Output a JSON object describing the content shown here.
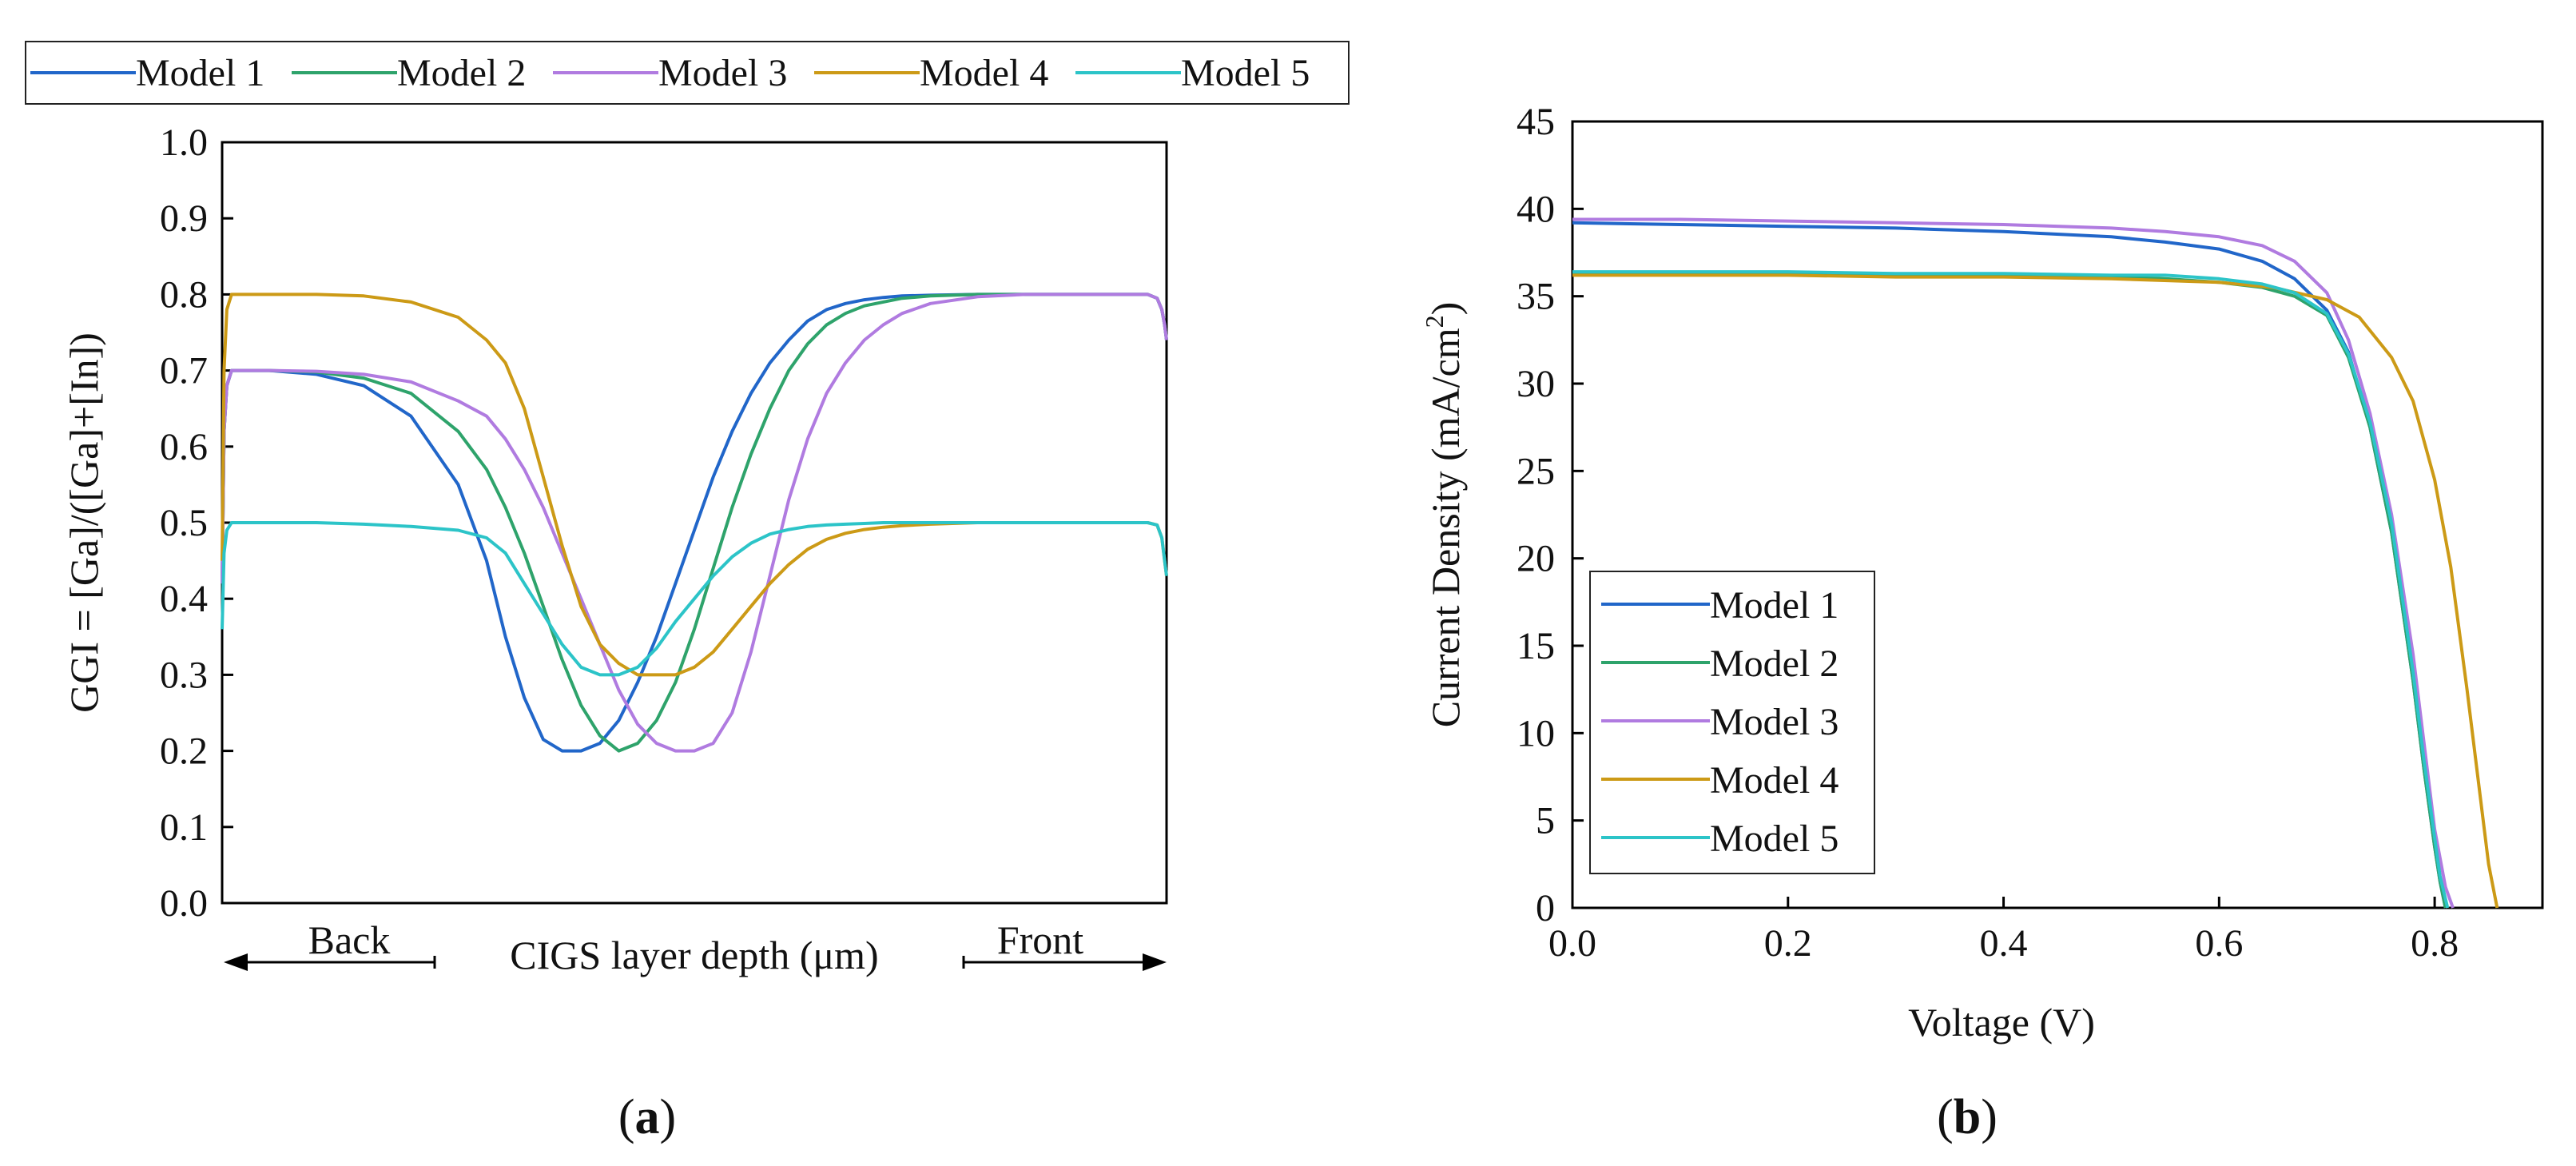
{
  "chart_data": [
    {
      "type": "line",
      "panel_label": "a",
      "title": "",
      "xlabel": "CIGS layer depth (μm)",
      "ylabel": "GGI = [Ga]/([Ga]+[In])",
      "direction_labels": {
        "left": "Back",
        "right": "Front"
      },
      "xlim": [
        0,
        1
      ],
      "ylim": [
        0,
        1
      ],
      "yticks": [
        0.0,
        0.1,
        0.2,
        0.3,
        0.4,
        0.5,
        0.6,
        0.7,
        0.8,
        0.9,
        1.0
      ],
      "ytick_labels": [
        "0.0",
        "0.1",
        "0.2",
        "0.3",
        "0.4",
        "0.5",
        "0.6",
        "0.7",
        "0.8",
        "0.9",
        "1.0"
      ],
      "grid": false,
      "legend_position": "top",
      "x": [
        0,
        0.002,
        0.005,
        0.01,
        0.02,
        0.05,
        0.1,
        0.15,
        0.2,
        0.25,
        0.28,
        0.3,
        0.32,
        0.34,
        0.36,
        0.38,
        0.4,
        0.42,
        0.44,
        0.46,
        0.48,
        0.5,
        0.52,
        0.54,
        0.56,
        0.58,
        0.6,
        0.62,
        0.64,
        0.66,
        0.68,
        0.7,
        0.72,
        0.75,
        0.8,
        0.85,
        0.9,
        0.95,
        0.98,
        0.99,
        0.995,
        0.998,
        1.0
      ],
      "series": [
        {
          "name": "Model 1",
          "color": "#2166c9",
          "values": [
            0.42,
            0.62,
            0.68,
            0.7,
            0.7,
            0.7,
            0.695,
            0.68,
            0.64,
            0.55,
            0.45,
            0.35,
            0.27,
            0.215,
            0.2,
            0.2,
            0.21,
            0.24,
            0.29,
            0.35,
            0.42,
            0.49,
            0.56,
            0.62,
            0.67,
            0.71,
            0.74,
            0.765,
            0.78,
            0.788,
            0.793,
            0.796,
            0.798,
            0.799,
            0.8,
            0.8,
            0.8,
            0.8,
            0.8,
            0.795,
            0.78,
            0.76,
            0.74
          ]
        },
        {
          "name": "Model 2",
          "color": "#2ea36b",
          "values": [
            0.42,
            0.62,
            0.68,
            0.7,
            0.7,
            0.7,
            0.698,
            0.69,
            0.67,
            0.62,
            0.57,
            0.52,
            0.46,
            0.39,
            0.32,
            0.26,
            0.22,
            0.2,
            0.21,
            0.24,
            0.29,
            0.36,
            0.44,
            0.52,
            0.59,
            0.65,
            0.7,
            0.735,
            0.76,
            0.775,
            0.785,
            0.79,
            0.795,
            0.798,
            0.8,
            0.8,
            0.8,
            0.8,
            0.8,
            0.795,
            0.78,
            0.76,
            0.74
          ]
        },
        {
          "name": "Model 3",
          "color": "#b07be0",
          "values": [
            0.42,
            0.62,
            0.68,
            0.7,
            0.7,
            0.7,
            0.699,
            0.695,
            0.685,
            0.66,
            0.64,
            0.61,
            0.57,
            0.52,
            0.46,
            0.4,
            0.34,
            0.28,
            0.235,
            0.21,
            0.2,
            0.2,
            0.21,
            0.25,
            0.33,
            0.43,
            0.53,
            0.61,
            0.67,
            0.71,
            0.74,
            0.76,
            0.775,
            0.788,
            0.797,
            0.8,
            0.8,
            0.8,
            0.8,
            0.795,
            0.78,
            0.76,
            0.74
          ]
        },
        {
          "name": "Model 4",
          "color": "#cc9a16",
          "values": [
            0.45,
            0.7,
            0.78,
            0.8,
            0.8,
            0.8,
            0.8,
            0.798,
            0.79,
            0.77,
            0.74,
            0.71,
            0.65,
            0.56,
            0.47,
            0.39,
            0.34,
            0.315,
            0.3,
            0.3,
            0.3,
            0.31,
            0.33,
            0.36,
            0.39,
            0.42,
            0.445,
            0.465,
            0.478,
            0.486,
            0.491,
            0.494,
            0.496,
            0.498,
            0.5,
            0.5,
            0.5,
            0.5,
            0.5,
            0.497,
            0.48,
            0.45,
            0.43
          ]
        },
        {
          "name": "Model 5",
          "color": "#2cc4c8",
          "values": [
            0.36,
            0.46,
            0.49,
            0.5,
            0.5,
            0.5,
            0.5,
            0.498,
            0.495,
            0.49,
            0.48,
            0.46,
            0.42,
            0.38,
            0.34,
            0.31,
            0.3,
            0.3,
            0.31,
            0.335,
            0.37,
            0.4,
            0.43,
            0.455,
            0.473,
            0.485,
            0.491,
            0.495,
            0.497,
            0.498,
            0.499,
            0.5,
            0.5,
            0.5,
            0.5,
            0.5,
            0.5,
            0.5,
            0.5,
            0.497,
            0.48,
            0.45,
            0.43
          ]
        }
      ]
    },
    {
      "type": "line",
      "panel_label": "b",
      "title": "",
      "xlabel": "Voltage (V)",
      "ylabel": "Current Density (mA/cm",
      "ylabel_superscript": "2",
      "ylabel_suffix": ")",
      "xlim": [
        0,
        0.9
      ],
      "ylim": [
        0,
        45
      ],
      "xticks": [
        0.0,
        0.2,
        0.4,
        0.6,
        0.8
      ],
      "xtick_labels": [
        "0.0",
        "0.2",
        "0.4",
        "0.6",
        "0.8"
      ],
      "yticks": [
        0,
        5,
        10,
        15,
        20,
        25,
        30,
        35,
        40,
        45
      ],
      "ytick_labels": [
        "0",
        "5",
        "10",
        "15",
        "20",
        "25",
        "30",
        "35",
        "40",
        "45"
      ],
      "grid": false,
      "legend_position": "lower-left",
      "series": [
        {
          "name": "Model 1",
          "color": "#2166c9",
          "x": [
            0,
            0.1,
            0.2,
            0.3,
            0.4,
            0.5,
            0.55,
            0.6,
            0.64,
            0.67,
            0.7,
            0.72,
            0.74,
            0.76,
            0.78,
            0.79,
            0.8,
            0.805,
            0.81
          ],
          "values": [
            39.2,
            39.1,
            39.0,
            38.9,
            38.7,
            38.4,
            38.1,
            37.7,
            37.0,
            36.0,
            34.2,
            31.8,
            27.5,
            21.5,
            13.0,
            8.0,
            3.5,
            1.5,
            0
          ]
        },
        {
          "name": "Model 2",
          "color": "#2ea36b",
          "x": [
            0,
            0.1,
            0.2,
            0.3,
            0.4,
            0.5,
            0.55,
            0.6,
            0.64,
            0.67,
            0.7,
            0.72,
            0.74,
            0.76,
            0.78,
            0.79,
            0.8,
            0.805,
            0.81
          ],
          "values": [
            36.3,
            36.3,
            36.3,
            36.2,
            36.2,
            36.1,
            36.0,
            35.8,
            35.5,
            35.0,
            33.9,
            31.5,
            27.5,
            21.5,
            13.0,
            8.0,
            3.5,
            1.5,
            0
          ]
        },
        {
          "name": "Model 3",
          "color": "#b07be0",
          "x": [
            0,
            0.1,
            0.2,
            0.3,
            0.4,
            0.5,
            0.55,
            0.6,
            0.64,
            0.67,
            0.7,
            0.72,
            0.74,
            0.76,
            0.78,
            0.79,
            0.8,
            0.81,
            0.817
          ],
          "values": [
            39.4,
            39.4,
            39.3,
            39.2,
            39.1,
            38.9,
            38.7,
            38.4,
            37.9,
            37.0,
            35.2,
            32.5,
            28.3,
            22.5,
            14.5,
            9.5,
            4.5,
            1.2,
            0
          ]
        },
        {
          "name": "Model 4",
          "color": "#cc9a16",
          "x": [
            0,
            0.1,
            0.2,
            0.3,
            0.4,
            0.5,
            0.6,
            0.65,
            0.7,
            0.73,
            0.76,
            0.78,
            0.8,
            0.815,
            0.83,
            0.84,
            0.85,
            0.858
          ],
          "values": [
            36.2,
            36.2,
            36.2,
            36.1,
            36.1,
            36.0,
            35.8,
            35.5,
            34.8,
            33.8,
            31.5,
            29.0,
            24.5,
            19.5,
            12.5,
            7.5,
            2.5,
            0
          ]
        },
        {
          "name": "Model 5",
          "color": "#2cc4c8",
          "x": [
            0,
            0.1,
            0.2,
            0.3,
            0.4,
            0.5,
            0.55,
            0.6,
            0.64,
            0.67,
            0.7,
            0.72,
            0.74,
            0.76,
            0.78,
            0.79,
            0.8,
            0.805,
            0.812
          ],
          "values": [
            36.4,
            36.4,
            36.4,
            36.3,
            36.3,
            36.2,
            36.2,
            36.0,
            35.7,
            35.2,
            34.0,
            31.7,
            27.8,
            22.0,
            13.5,
            8.5,
            4.0,
            1.8,
            0
          ]
        }
      ]
    }
  ]
}
